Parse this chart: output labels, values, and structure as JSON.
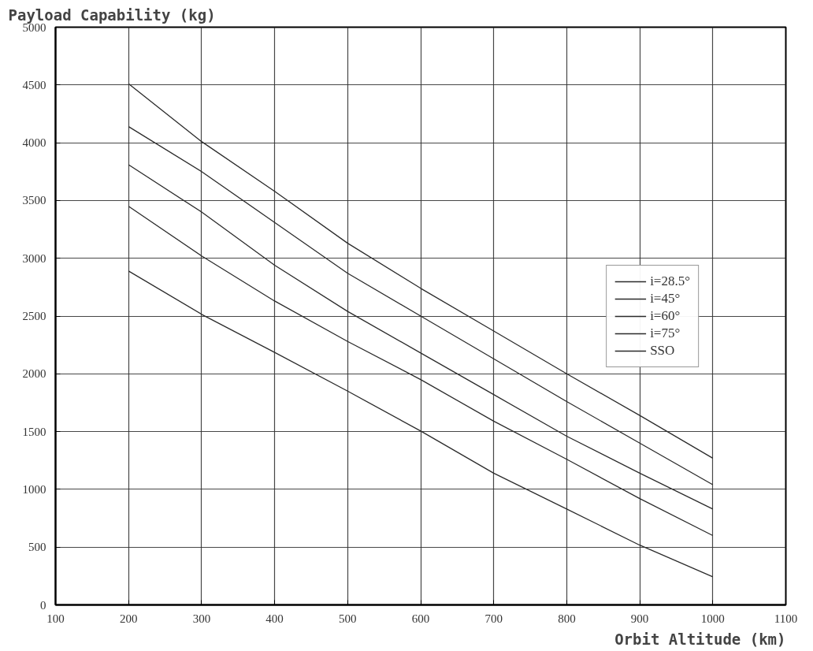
{
  "chart_data": {
    "type": "line",
    "xlabel": "Orbit Altitude (km)",
    "ylabel": "Payload Capability (kg)",
    "x": [
      200,
      300,
      400,
      500,
      600,
      700,
      800,
      900,
      1000
    ],
    "series": [
      {
        "name": "i=28.5°",
        "color": "#2b2b2b",
        "values": [
          4510,
          4010,
          3580,
          3130,
          2740,
          2370,
          2000,
          1640,
          1270
        ]
      },
      {
        "name": "i=45°",
        "color": "#2b2b2b",
        "values": [
          4140,
          3750,
          3310,
          2870,
          2500,
          2130,
          1760,
          1400,
          1040
        ]
      },
      {
        "name": "i=60°",
        "color": "#2b2b2b",
        "values": [
          3810,
          3400,
          2940,
          2540,
          2180,
          1820,
          1460,
          1140,
          830
        ]
      },
      {
        "name": "i=75°",
        "color": "#2b2b2b",
        "values": [
          3450,
          3020,
          2630,
          2280,
          1950,
          1590,
          1260,
          920,
          600
        ]
      },
      {
        "name": "SSO",
        "color": "#2b2b2b",
        "values": [
          2890,
          2515,
          2185,
          1850,
          1505,
          1140,
          830,
          517,
          243
        ]
      }
    ],
    "xlim": [
      100,
      1100
    ],
    "xticks": [
      100,
      200,
      300,
      400,
      500,
      600,
      700,
      800,
      900,
      1000,
      1100
    ],
    "ylim": [
      0,
      5000
    ],
    "yticks": [
      0,
      500,
      1000,
      1500,
      2000,
      2500,
      3000,
      3500,
      4000,
      4500,
      5000
    ],
    "grid": true,
    "legend": "right",
    "marker": "none",
    "line_style": "solid"
  }
}
